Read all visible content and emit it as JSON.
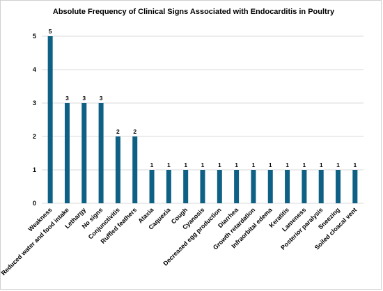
{
  "chart_data": {
    "type": "bar",
    "title": "Absolute Frequency of Clinical Signs Associated with Endocarditis in Poultry",
    "xlabel": "",
    "ylabel": "",
    "categories": [
      "Weakness",
      "Reduced water and food intake",
      "Lethargy",
      "No signs",
      "Conjunctivitis",
      "Ruffled feathers",
      "Ataxia",
      "Caquexia",
      "Cough",
      "Cyanosis",
      "Decreased egg production",
      "Diarrhea",
      "Growth retardation",
      "Infraorbital edema",
      "Keratitis",
      "Lameness",
      "Posterior paralysis",
      "Sneezing",
      "Soiled cloacal vent"
    ],
    "values": [
      5,
      3,
      3,
      3,
      2,
      2,
      1,
      1,
      1,
      1,
      1,
      1,
      1,
      1,
      1,
      1,
      1,
      1,
      1
    ],
    "ylim": [
      0,
      6
    ],
    "yticks": [
      0,
      1,
      2,
      3,
      4,
      5
    ],
    "grid": true,
    "data_labels": true,
    "legend": "none",
    "bar_color": "#0e6185"
  }
}
